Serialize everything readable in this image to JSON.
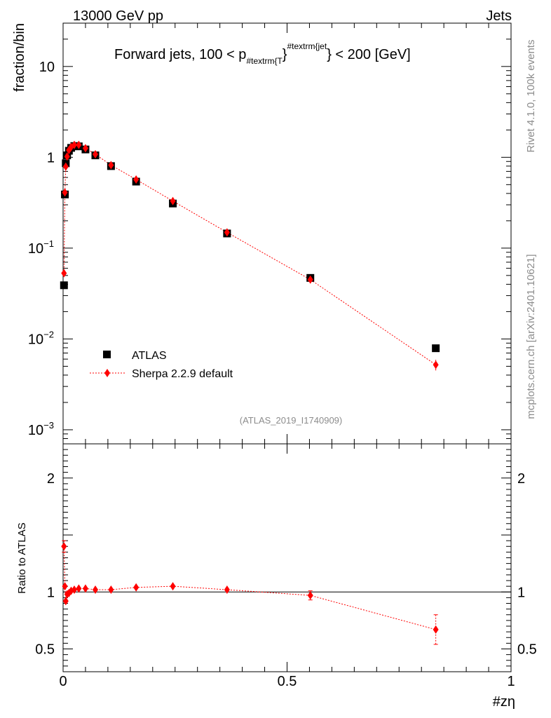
{
  "header": {
    "left": "13000 GeV pp",
    "right": "Jets"
  },
  "title": {
    "prefix": "Forward jets, 100 < p",
    "sub": "#textrm{T",
    "brace": "}",
    "sup": "#textrm{jet",
    "suffix": "} < 200 [GeV]"
  },
  "side": {
    "rivet": "Rivet 4.1.0,  100k events",
    "mcplots": "mcplots.cern.ch [arXiv:2401.10621]"
  },
  "analysis_id": "(ATLAS_2019_I1740909)",
  "colors": {
    "data": "#000000",
    "mc": "#ff0000"
  },
  "chart_data": [
    {
      "type": "scatter",
      "title": "Forward jets, 100 < p_T^jet < 200 [GeV]",
      "xlabel": "#zη",
      "ylabel": "fraction/bin",
      "yscale": "log",
      "xlim": [
        0,
        1
      ],
      "ylim": [
        0.0007,
        30
      ],
      "y_ticks": [
        {
          "value": 10,
          "mant": "10",
          "exp": ""
        },
        {
          "value": 1,
          "mant": "1",
          "exp": ""
        },
        {
          "value": 0.1,
          "mant": "10",
          "exp": "−1"
        },
        {
          "value": 0.01,
          "mant": "10",
          "exp": "−2"
        },
        {
          "value": 0.001,
          "mant": "10",
          "exp": "−3"
        }
      ],
      "legend": [
        "ATLAS",
        "Sherpa 2.2.9 default"
      ],
      "legend_position": "lower-left",
      "series": [
        {
          "name": "ATLAS",
          "marker": "square",
          "x": [
            0.002,
            0.004,
            0.006,
            0.009,
            0.013,
            0.018,
            0.025,
            0.035,
            0.05,
            0.072,
            0.107,
            0.163,
            0.245,
            0.366,
            0.552,
            0.832
          ],
          "values": [
            0.039,
            0.39,
            0.86,
            1.05,
            1.18,
            1.27,
            1.33,
            1.32,
            1.22,
            1.05,
            0.8,
            0.54,
            0.31,
            0.145,
            0.047,
            0.0079
          ]
        },
        {
          "name": "Sherpa 2.2.9 default",
          "marker": "diamond",
          "x": [
            0.002,
            0.004,
            0.006,
            0.009,
            0.013,
            0.018,
            0.025,
            0.035,
            0.05,
            0.072,
            0.107,
            0.163,
            0.245,
            0.366,
            0.552,
            0.832
          ],
          "values": [
            0.053,
            0.41,
            0.79,
            1.02,
            1.2,
            1.3,
            1.37,
            1.37,
            1.26,
            1.08,
            0.82,
            0.57,
            0.33,
            0.149,
            0.045,
            0.0052
          ],
          "err": [
            0.002,
            0.005,
            0.01,
            0.01,
            0.01,
            0.01,
            0.01,
            0.01,
            0.01,
            0.01,
            0.008,
            0.006,
            0.004,
            0.002,
            0.0012,
            0.0007
          ]
        }
      ]
    },
    {
      "type": "scatter",
      "ylabel": "Ratio to ATLAS",
      "xlabel": "#zη",
      "xlim": [
        0,
        1
      ],
      "ylim": [
        0.3,
        2.3
      ],
      "x_ticks": [
        {
          "value": 0,
          "label": "0"
        },
        {
          "value": 0.5,
          "label": "0.5"
        },
        {
          "value": 1,
          "label": "1"
        }
      ],
      "y_ticks": [
        {
          "value": 2,
          "label": "2"
        },
        {
          "value": 1,
          "label": "1"
        },
        {
          "value": 0.5,
          "label": "0.5"
        }
      ],
      "reference": 1,
      "series": [
        {
          "name": "Sherpa 2.2.9 default / ATLAS",
          "x": [
            0.002,
            0.004,
            0.006,
            0.009,
            0.013,
            0.018,
            0.025,
            0.035,
            0.05,
            0.072,
            0.107,
            0.163,
            0.245,
            0.366,
            0.552,
            0.832
          ],
          "values": [
            1.4,
            1.05,
            0.92,
            0.98,
            0.99,
            1.01,
            1.02,
            1.03,
            1.03,
            1.02,
            1.02,
            1.04,
            1.05,
            1.02,
            0.97,
            0.67
          ],
          "err": [
            0.05,
            0.02,
            0.015,
            0.01,
            0.01,
            0.01,
            0.01,
            0.01,
            0.01,
            0.01,
            0.01,
            0.012,
            0.015,
            0.02,
            0.04,
            0.13
          ]
        }
      ]
    }
  ]
}
